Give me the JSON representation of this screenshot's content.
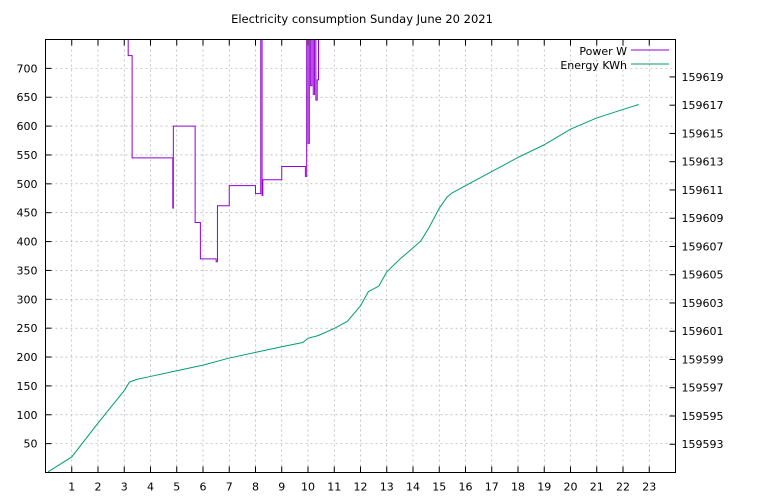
{
  "chart_data": {
    "type": "line",
    "title": "Electricity consumption Sunday June 20 2021",
    "xlabel": "",
    "ylabel": "",
    "y2label": "",
    "xlim": [
      0,
      24
    ],
    "ylim": [
      0,
      750
    ],
    "y2lim": [
      159591,
      159621.65
    ],
    "grid": true,
    "legend_position": "top-right",
    "x_ticks": [
      1,
      2,
      3,
      4,
      5,
      6,
      7,
      8,
      9,
      10,
      11,
      12,
      13,
      14,
      15,
      16,
      17,
      18,
      19,
      20,
      21,
      22,
      23
    ],
    "y_ticks": [
      50,
      100,
      150,
      200,
      250,
      300,
      350,
      400,
      450,
      500,
      550,
      600,
      650,
      700
    ],
    "y2_ticks": [
      159593,
      159595,
      159597,
      159599,
      159601,
      159603,
      159605,
      159607,
      159609,
      159611,
      159613,
      159615,
      159617,
      159619
    ],
    "series": [
      {
        "name": "Power W",
        "axis": "y",
        "color": "#9400d3",
        "x": [
          3.15,
          3.15,
          3.3,
          3.3,
          3.4,
          3.4,
          4.85,
          4.85,
          4.87,
          4.87,
          5.7,
          5.7,
          5.9,
          5.9,
          6.5,
          6.5,
          6.55,
          6.55,
          7.0,
          7.0,
          8.0,
          8.0,
          8.2,
          8.2,
          8.25,
          8.25,
          8.28,
          8.28,
          9.0,
          9.0,
          9.9,
          9.9,
          9.95,
          9.95,
          10.0,
          10.0,
          10.05,
          10.05,
          10.1,
          10.1,
          10.15,
          10.15,
          10.2,
          10.2,
          10.25,
          10.25,
          10.3,
          10.3,
          10.35,
          10.35,
          10.4,
          10.4
        ],
        "y": [
          750,
          722,
          722,
          545,
          545,
          545,
          545,
          458,
          458,
          600,
          600,
          433,
          433,
          370,
          370,
          365,
          365,
          462,
          462,
          497,
          497,
          483,
          483,
          750,
          750,
          480,
          480,
          507,
          507,
          530,
          530,
          513,
          513,
          750,
          750,
          570,
          570,
          750,
          750,
          670,
          670,
          750,
          750,
          655,
          655,
          750,
          750,
          645,
          645,
          680,
          680,
          750
        ]
      },
      {
        "name": "Energy KWh",
        "axis": "y2",
        "color": "#009e73",
        "x": [
          0.1,
          1.0,
          2.0,
          3.0,
          3.2,
          3.5,
          4.0,
          5.0,
          6.0,
          7.0,
          8.0,
          9.0,
          9.8,
          10.0,
          10.4,
          11.0,
          11.5,
          12.0,
          12.3,
          12.7,
          13.0,
          13.5,
          14.0,
          14.3,
          14.6,
          15.0,
          15.3,
          15.5,
          16.0,
          17.0,
          18.0,
          19.0,
          20.0,
          21.0,
          22.0,
          22.6
        ],
        "y": [
          159591.05,
          159592.1,
          159594.5,
          159596.8,
          159597.4,
          159597.6,
          159597.8,
          159598.2,
          159598.6,
          159599.1,
          159599.5,
          159599.9,
          159600.2,
          159600.5,
          159600.7,
          159601.2,
          159601.7,
          159602.8,
          159603.8,
          159604.2,
          159605.2,
          159606.1,
          159606.9,
          159607.4,
          159608.3,
          159609.7,
          159610.5,
          159610.8,
          159611.3,
          159612.3,
          159613.3,
          159614.2,
          159615.3,
          159616.1,
          159616.7,
          159617.05
        ]
      }
    ]
  }
}
